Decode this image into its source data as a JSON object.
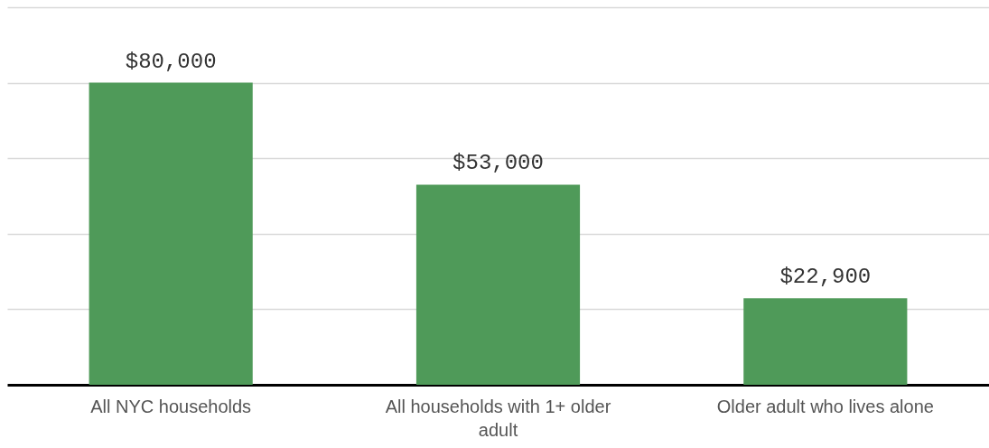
{
  "chart_data": {
    "type": "bar",
    "categories": [
      "All NYC households",
      "All households with 1+ older adult",
      "Older adult who lives alone"
    ],
    "values": [
      80000,
      53000,
      22900
    ],
    "color": "#4f9a59",
    "value_labels": [
      "$80,000",
      "$53,000",
      "$22,900"
    ],
    "ylim": [
      0,
      100000
    ],
    "yticks": [
      {
        "value": 0,
        "label": null
      },
      {
        "value": 20000,
        "label": null
      },
      {
        "value": 40000,
        "label": null
      },
      {
        "value": 60000,
        "label": null
      },
      {
        "value": 80000,
        "label": null
      },
      {
        "value": 100000,
        "label": null
      }
    ],
    "grid": "y",
    "tick_labels": "x"
  }
}
